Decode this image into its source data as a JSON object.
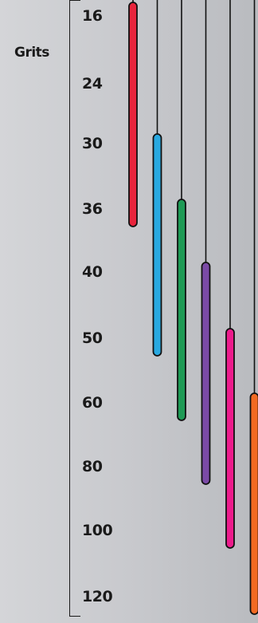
{
  "chart_data": {
    "type": "range-bars",
    "axis_title": "Grits",
    "ticks": [
      "16",
      "24",
      "30",
      "36",
      "40",
      "50",
      "60",
      "80",
      "100",
      "120"
    ],
    "bars": [
      {
        "start": "16",
        "end": "36",
        "color": "#e8243c"
      },
      {
        "start": "30",
        "end": "50",
        "color": "#29a9e1"
      },
      {
        "start": "36",
        "end": "60",
        "color": "#1e9a55"
      },
      {
        "start": "40",
        "end": "80",
        "color": "#7b4aa6"
      },
      {
        "start": "50",
        "end": "100",
        "color": "#ec1c8c"
      },
      {
        "start": "60",
        "end": "120",
        "color": "#f26a22"
      }
    ]
  }
}
